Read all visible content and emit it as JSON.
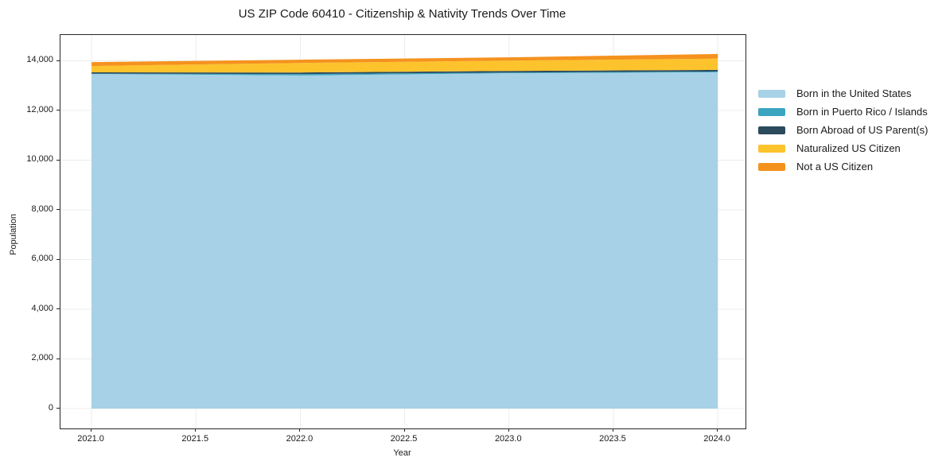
{
  "title": "US ZIP Code 60410 - Citizenship & Nativity Trends Over Time",
  "colors": {
    "grid": "#ececec",
    "spine": "#262626",
    "text": "#1a1a1a",
    "background": "#ffffff"
  },
  "chart_data": {
    "type": "area",
    "stacked": true,
    "title": "US ZIP Code 60410 - Citizenship & Nativity Trends Over Time",
    "xlabel": "Year",
    "ylabel": "Population",
    "grid": true,
    "legend_position": "right-outside",
    "x": [
      2021,
      2022,
      2023,
      2024
    ],
    "series": [
      {
        "name": "Born in the United States",
        "color": "#a6d1e6",
        "values": [
          13470,
          13410,
          13500,
          13540
        ]
      },
      {
        "name": "Born in Puerto Rico / Islands",
        "color": "#3ba4c0",
        "values": [
          15,
          60,
          30,
          30
        ]
      },
      {
        "name": "Born Abroad of US Parent(s)",
        "color": "#2b4a5c",
        "values": [
          50,
          60,
          65,
          65
        ]
      },
      {
        "name": "Naturalized US Citizen",
        "color": "#fcc32d",
        "values": [
          255,
          385,
          415,
          450
        ]
      },
      {
        "name": "Not a US Citizen",
        "color": "#f5921e",
        "values": [
          160,
          130,
          130,
          190
        ]
      }
    ],
    "totals": [
      13950,
      14045,
      14140,
      14275
    ],
    "x_ticks": [
      "2021.0",
      "2021.5",
      "2022.0",
      "2022.5",
      "2023.0",
      "2023.5",
      "2024.0"
    ],
    "x_tick_values": [
      2021,
      2021.5,
      2022,
      2022.5,
      2023,
      2023.5,
      2024
    ],
    "y_ticks": [
      "0",
      "2,000",
      "4,000",
      "6,000",
      "8,000",
      "10,000",
      "12,000",
      "14,000"
    ],
    "y_tick_values": [
      0,
      2000,
      4000,
      6000,
      8000,
      10000,
      12000,
      14000
    ],
    "xlim": [
      2020.851,
      2024.133
    ],
    "ylim": [
      -800,
      15040
    ]
  }
}
